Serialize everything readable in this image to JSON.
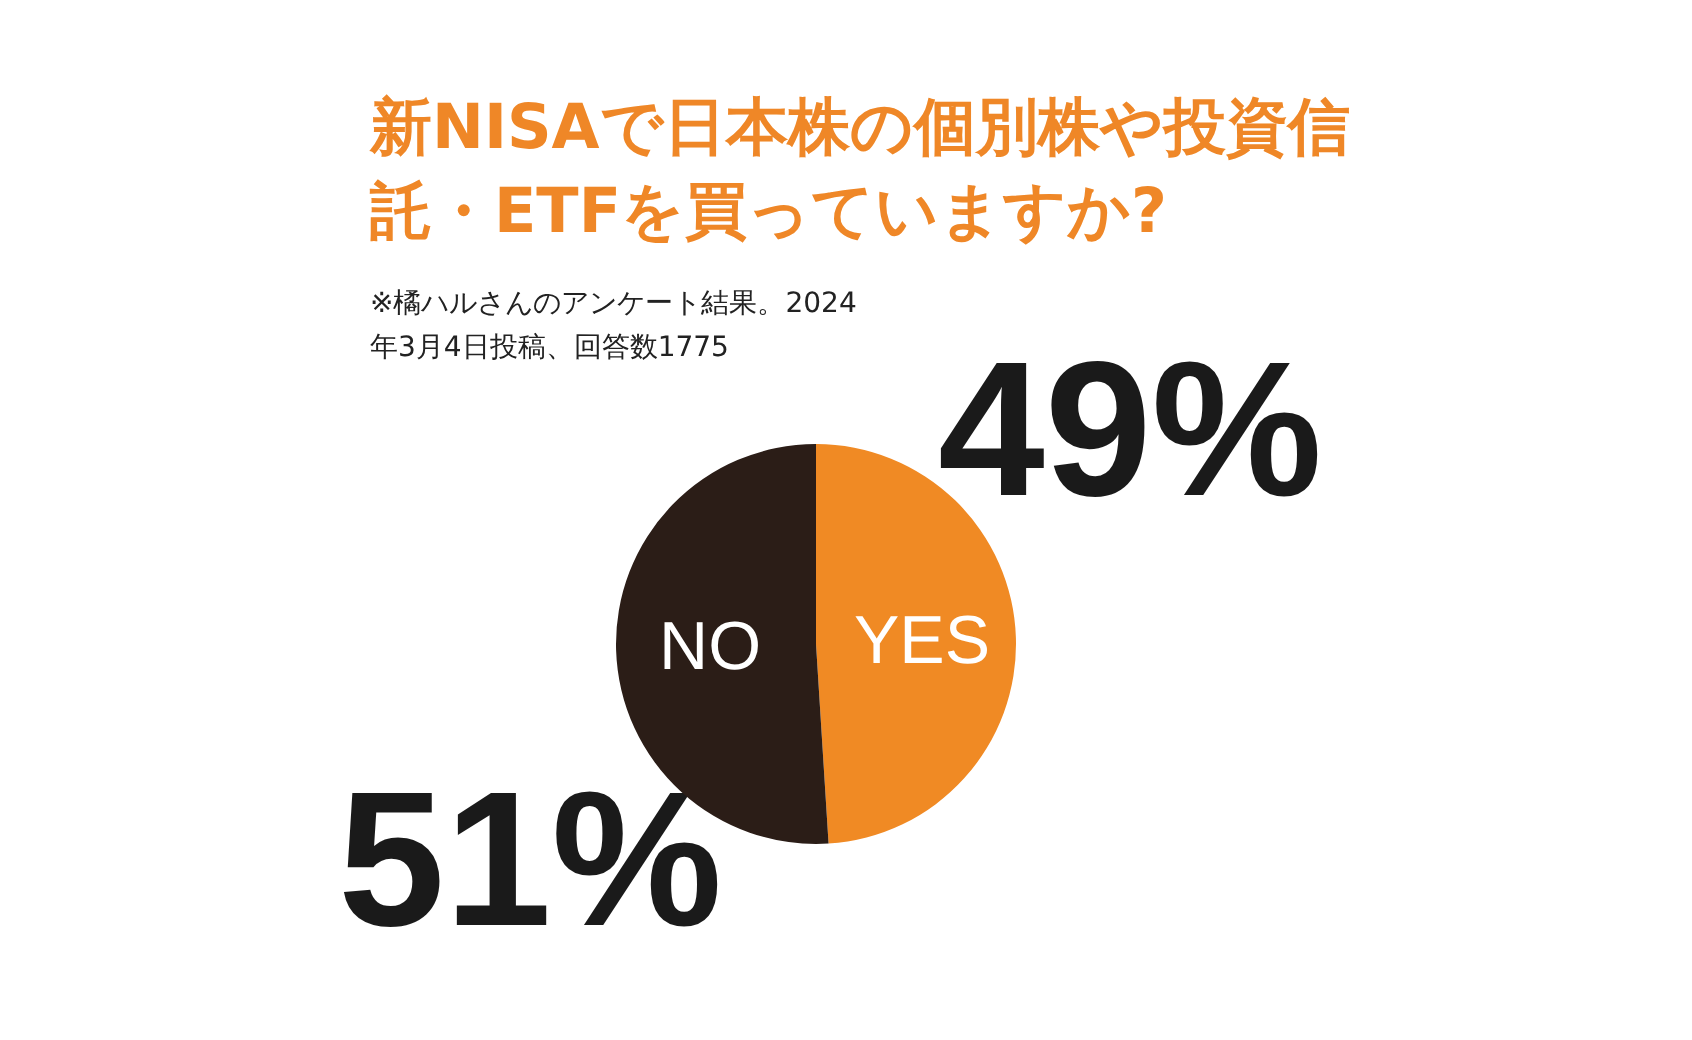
{
  "chart_data": {
    "type": "pie",
    "title": "新NISAで日本株の個別株や投資信託・ETFを買っていますか?",
    "subtitle": "※橘ハルさんのアンケート結果。2024年3月4日投稿、回答数1775",
    "categories": [
      "YES",
      "NO"
    ],
    "values": [
      49,
      51
    ],
    "colors": [
      "#f08a24",
      "#2b1d17"
    ],
    "value_labels": [
      "49%",
      "51%"
    ]
  }
}
